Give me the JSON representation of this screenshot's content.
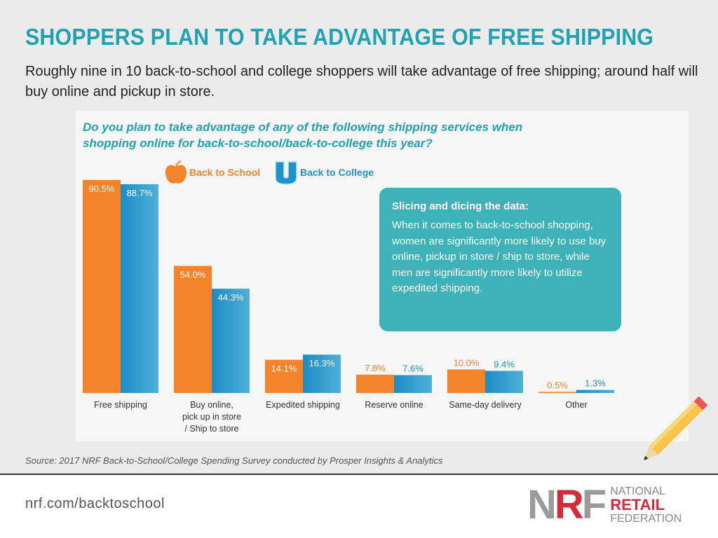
{
  "header": {
    "title": "SHOPPERS PLAN TO TAKE ADVANTAGE OF FREE SHIPPING",
    "subtitle": "Roughly nine in 10 back-to-school and college shoppers will take advantage of free shipping; around half will buy online and pickup in store."
  },
  "chart_data": {
    "type": "bar",
    "title": "Do you plan to take advantage of any of the following shipping services when shopping online for back-to-school/back-to-college this year?",
    "categories": [
      "Free shipping",
      "Buy online, pick up in store / Ship to store",
      "Expedited shipping",
      "Reserve online",
      "Same-day delivery",
      "Other"
    ],
    "series": [
      {
        "name": "Back to School",
        "color": "#f5832a",
        "icon": "apple-icon",
        "values": [
          90.5,
          54.0,
          14.1,
          7.8,
          10.0,
          0.5
        ]
      },
      {
        "name": "Back to College",
        "color": "#1f93c9",
        "icon": "u-letter-icon",
        "values": [
          88.7,
          44.3,
          16.3,
          7.6,
          9.4,
          1.3
        ]
      }
    ],
    "ylim": [
      0,
      100
    ],
    "grid": false,
    "legend": "top"
  },
  "callout": {
    "title": "Slicing and dicing the data:",
    "body": "When it comes to back-to-school shopping, women are significantly more likely to use buy online, pickup in store / ship to store, while men are significantly more likely to utilize expedited shipping."
  },
  "source": "Source: 2017 NRF Back-to-School/College Spending Survey conducted by Prosper Insights & Analytics",
  "footer": {
    "url": "nrf.com/backtoschool",
    "logo": {
      "mark": "NRF",
      "line1": "NATIONAL",
      "line2": "RETAIL",
      "line3": "FEDERATION"
    }
  }
}
